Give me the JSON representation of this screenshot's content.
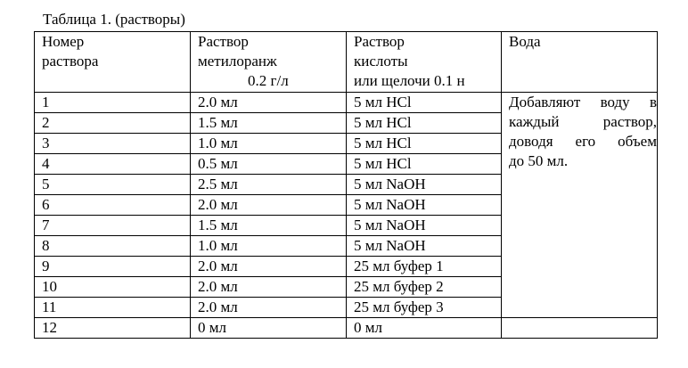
{
  "caption": "Таблица 1. (растворы)",
  "headers": {
    "col1": [
      "Номер",
      "раствора"
    ],
    "col2": [
      "Раствор",
      "метилоранж",
      "0.2 г/л"
    ],
    "col3": [
      "Раствор",
      "кислоты",
      "или щелочи 0.1 н"
    ],
    "col4": "Вода"
  },
  "rows": [
    {
      "num": "1",
      "methyl": "2.0 мл",
      "reagent": "5 мл HCl"
    },
    {
      "num": "2",
      "methyl": "1.5 мл",
      "reagent": "5 мл HCl"
    },
    {
      "num": "3",
      "methyl": "1.0 мл",
      "reagent": "5 мл HCl"
    },
    {
      "num": "4",
      "methyl": "0.5 мл",
      "reagent": "5 мл HCl"
    },
    {
      "num": "5",
      "methyl": "2.5 мл",
      "reagent": "5 мл NaOH"
    },
    {
      "num": "6",
      "methyl": "2.0 мл",
      "reagent": "5 мл NaOH"
    },
    {
      "num": "7",
      "methyl": "1.5 мл",
      "reagent": "5 мл NaOH"
    },
    {
      "num": "8",
      "methyl": "1.0 мл",
      "reagent": "5 мл NaOH"
    },
    {
      "num": "9",
      "methyl": "2.0 мл",
      "reagent": "25 мл буфер 1"
    },
    {
      "num": "10",
      "methyl": "2.0 мл",
      "reagent": "25 мл буфер 2"
    },
    {
      "num": "11",
      "methyl": "2.0 мл",
      "reagent": "25 мл буфер 3"
    },
    {
      "num": "12",
      "methyl": "0 мл",
      "reagent": "0 мл"
    }
  ],
  "water_note": [
    "Добавляют воду в",
    "каждый раствор,",
    "доводя его объем",
    "до 50 мл."
  ]
}
